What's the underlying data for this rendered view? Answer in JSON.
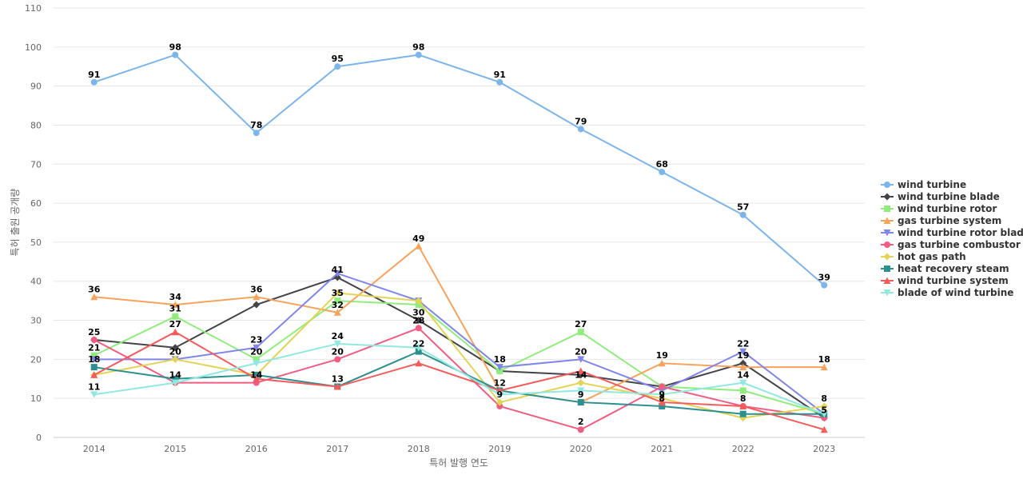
{
  "chart_data": {
    "type": "line",
    "title": "",
    "xlabel": "특허 발행 연도",
    "ylabel": "특허 출원 공개량",
    "x": [
      "2014",
      "2015",
      "2016",
      "2017",
      "2018",
      "2019",
      "2020",
      "2021",
      "2022",
      "2023"
    ],
    "ylim": [
      0,
      110
    ],
    "yticks": [
      0,
      10,
      20,
      30,
      40,
      50,
      60,
      70,
      80,
      90,
      100,
      110
    ],
    "grid": true,
    "legend_position": "right",
    "series": [
      {
        "name": "wind turbine",
        "color": "#7cb5ec",
        "marker": "circle",
        "values": [
          91,
          98,
          78,
          95,
          98,
          91,
          79,
          68,
          57,
          39
        ]
      },
      {
        "name": "wind turbine blade",
        "color": "#434348",
        "marker": "diamond",
        "values": [
          25,
          23,
          34,
          41,
          30,
          17,
          16,
          13,
          19,
          5
        ]
      },
      {
        "name": "wind turbine rotor",
        "color": "#90ed7d",
        "marker": "square",
        "values": [
          21,
          31,
          20,
          35,
          34,
          17,
          27,
          13,
          12,
          6
        ]
      },
      {
        "name": "gas turbine system",
        "color": "#f7a35c",
        "marker": "triangle",
        "values": [
          36,
          34,
          36,
          32,
          49,
          12,
          9,
          19,
          18,
          18
        ]
      },
      {
        "name": "wind turbine rotor blade",
        "color": "#8085e9",
        "marker": "triangle-down",
        "values": [
          20,
          20,
          23,
          42,
          35,
          18,
          20,
          12,
          22,
          6
        ]
      },
      {
        "name": "gas turbine combustor",
        "color": "#f15c80",
        "marker": "circle",
        "values": [
          25,
          14,
          14,
          20,
          28,
          8,
          2,
          13,
          8,
          5
        ]
      },
      {
        "name": "hot gas path",
        "color": "#e4d354",
        "marker": "diamond",
        "values": [
          16,
          20,
          16,
          37,
          35,
          9,
          14,
          10,
          5,
          8
        ]
      },
      {
        "name": "heat recovery steam",
        "color": "#2b908f",
        "marker": "square",
        "values": [
          18,
          15,
          16,
          13,
          22,
          12,
          9,
          8,
          6,
          6
        ]
      },
      {
        "name": "wind turbine system",
        "color": "#f45b5b",
        "marker": "triangle",
        "values": [
          16,
          27,
          15,
          13,
          19,
          12,
          17,
          9,
          8,
          2
        ]
      },
      {
        "name": "blade of wind turbine",
        "color": "#91e8e1",
        "marker": "triangle-down",
        "values": [
          11,
          14,
          19,
          24,
          23,
          11,
          12,
          11,
          14,
          6
        ]
      }
    ],
    "data_labels": [
      {
        "series": 0,
        "points": [
          0,
          1,
          2,
          3,
          4,
          5,
          6,
          7,
          8,
          9
        ]
      },
      {
        "series": 1,
        "points": [
          0,
          3,
          4,
          8,
          9
        ]
      },
      {
        "series": 2,
        "points": [
          0,
          1,
          2,
          3,
          6
        ]
      },
      {
        "series": 3,
        "points": [
          0,
          1,
          2,
          3,
          4,
          7,
          9
        ]
      },
      {
        "series": 4,
        "points": [
          2,
          5,
          6,
          8
        ]
      },
      {
        "series": 5,
        "points": [
          1,
          2,
          3,
          4,
          6,
          8,
          9
        ]
      },
      {
        "series": 6,
        "points": [
          1,
          5,
          6,
          9
        ]
      },
      {
        "series": 7,
        "points": [
          0,
          3,
          4,
          6,
          7
        ]
      },
      {
        "series": 8,
        "points": [
          1,
          5,
          7
        ]
      },
      {
        "series": 9,
        "points": [
          0,
          3,
          8
        ]
      }
    ]
  }
}
